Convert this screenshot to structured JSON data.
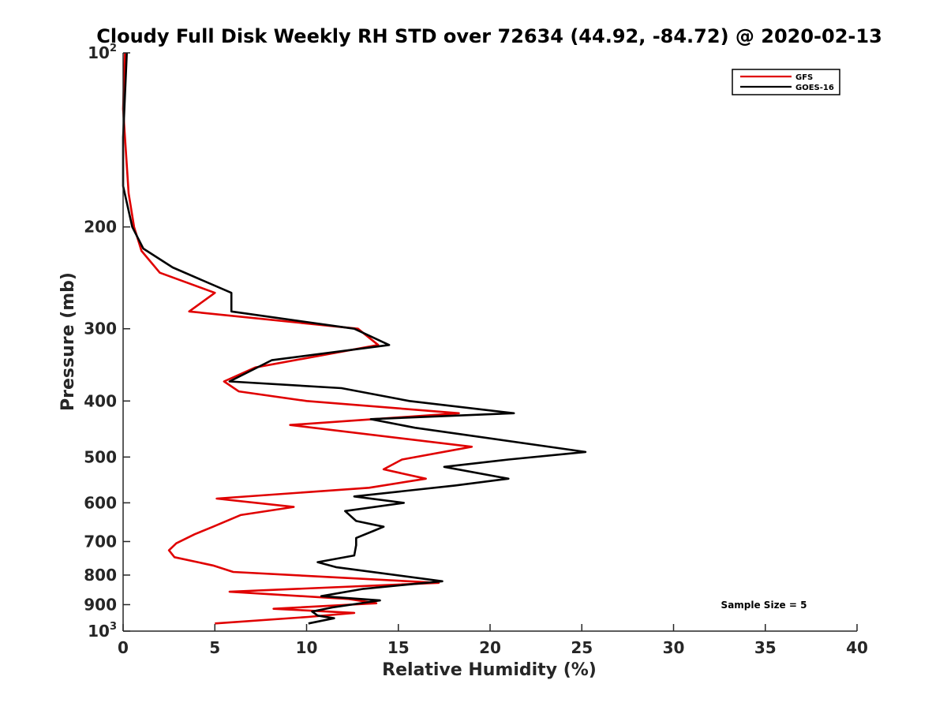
{
  "chart_data": {
    "type": "line",
    "title": "Cloudy Full Disk Weekly RH STD over 72634 (44.92, -84.72) @ 2020-02-13",
    "xlabel": "Relative Humidity (%)",
    "ylabel": "Pressure (mb)",
    "xlim": [
      0,
      40
    ],
    "ylim": [
      100,
      1000
    ],
    "y_scale": "log",
    "y_reversed": true,
    "grid": false,
    "legend_position": "top-right",
    "x_ticks": [
      "0",
      "5",
      "10",
      "15",
      "20",
      "25",
      "30",
      "35",
      "40"
    ],
    "y_ticks": [
      {
        "value": 100,
        "base": "10",
        "exp": "2"
      },
      {
        "value": 200,
        "label": "200"
      },
      {
        "value": 300,
        "label": "300"
      },
      {
        "value": 400,
        "label": "400"
      },
      {
        "value": 500,
        "label": "500"
      },
      {
        "value": 600,
        "label": "600"
      },
      {
        "value": 700,
        "label": "700"
      },
      {
        "value": 800,
        "label": "800"
      },
      {
        "value": 900,
        "label": "900"
      },
      {
        "value": 1000,
        "base": "10",
        "exp": "3"
      }
    ],
    "annotation": "Sample Size = 5",
    "series": [
      {
        "name": "GFS",
        "color": "#e00000",
        "points": [
          [
            0.1,
            100
          ],
          [
            0.0,
            125
          ],
          [
            0.3,
            175
          ],
          [
            0.6,
            200
          ],
          [
            1.0,
            220
          ],
          [
            2.0,
            240
          ],
          [
            5.0,
            260
          ],
          [
            3.6,
            280
          ],
          [
            12.8,
            300
          ],
          [
            13.9,
            320
          ],
          [
            7.2,
            350
          ],
          [
            5.5,
            370
          ],
          [
            6.3,
            385
          ],
          [
            10.0,
            400
          ],
          [
            18.3,
            420
          ],
          [
            9.1,
            440
          ],
          [
            19.0,
            480
          ],
          [
            15.2,
            505
          ],
          [
            14.2,
            525
          ],
          [
            16.5,
            545
          ],
          [
            13.4,
            565
          ],
          [
            5.1,
            590
          ],
          [
            9.3,
            610
          ],
          [
            6.4,
            630
          ],
          [
            4.9,
            660
          ],
          [
            3.9,
            680
          ],
          [
            2.9,
            705
          ],
          [
            2.5,
            725
          ],
          [
            2.8,
            745
          ],
          [
            4.9,
            770
          ],
          [
            6.0,
            790
          ],
          [
            17.2,
            825
          ],
          [
            5.8,
            855
          ],
          [
            12.3,
            880
          ],
          [
            13.8,
            895
          ],
          [
            8.2,
            915
          ],
          [
            12.6,
            930
          ],
          [
            10.1,
            945
          ],
          [
            5.0,
            970
          ]
        ]
      },
      {
        "name": "GOES-16",
        "color": "#000000",
        "points": [
          [
            0.2,
            100
          ],
          [
            0.0,
            140
          ],
          [
            0.0,
            170
          ],
          [
            0.5,
            200
          ],
          [
            1.1,
            218
          ],
          [
            2.7,
            235
          ],
          [
            5.9,
            260
          ],
          [
            5.9,
            280
          ],
          [
            12.6,
            300
          ],
          [
            14.5,
            320
          ],
          [
            8.1,
            340
          ],
          [
            5.8,
            370
          ],
          [
            11.9,
            380
          ],
          [
            15.6,
            400
          ],
          [
            21.3,
            420
          ],
          [
            13.5,
            430
          ],
          [
            15.9,
            445
          ],
          [
            25.2,
            490
          ],
          [
            21.0,
            505
          ],
          [
            17.5,
            520
          ],
          [
            21.0,
            545
          ],
          [
            18.1,
            560
          ],
          [
            12.6,
            585
          ],
          [
            15.3,
            600
          ],
          [
            12.1,
            620
          ],
          [
            12.7,
            645
          ],
          [
            14.2,
            660
          ],
          [
            13.7,
            670
          ],
          [
            12.7,
            690
          ],
          [
            12.7,
            710
          ],
          [
            12.6,
            740
          ],
          [
            10.6,
            760
          ],
          [
            11.6,
            775
          ],
          [
            17.4,
            820
          ],
          [
            13.1,
            845
          ],
          [
            10.8,
            870
          ],
          [
            14.0,
            885
          ],
          [
            11.4,
            910
          ],
          [
            10.3,
            925
          ],
          [
            10.6,
            940
          ],
          [
            11.5,
            950
          ],
          [
            10.1,
            970
          ]
        ]
      }
    ]
  }
}
